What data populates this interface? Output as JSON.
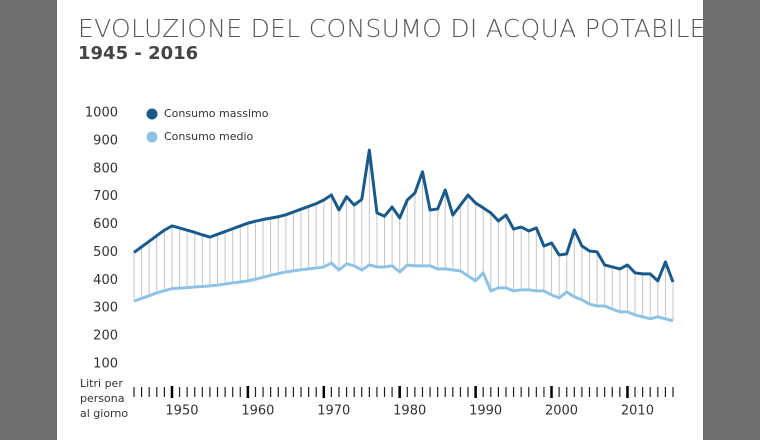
{
  "chart_data": {
    "type": "line",
    "title": "EVOLUZIONE DEL CONSUMO DI ACQUA POTABILE",
    "subtitle": "1945 - 2016",
    "y_label": "Litri per persona al giorno",
    "x": [
      1945,
      1946,
      1947,
      1948,
      1949,
      1950,
      1951,
      1952,
      1953,
      1954,
      1955,
      1956,
      1957,
      1958,
      1959,
      1960,
      1961,
      1962,
      1963,
      1964,
      1965,
      1966,
      1967,
      1968,
      1969,
      1970,
      1971,
      1972,
      1973,
      1974,
      1975,
      1976,
      1977,
      1978,
      1979,
      1980,
      1981,
      1982,
      1983,
      1984,
      1985,
      1986,
      1987,
      1988,
      1989,
      1990,
      1991,
      1992,
      1993,
      1994,
      1995,
      1996,
      1997,
      1998,
      1999,
      2000,
      2001,
      2002,
      2003,
      2004,
      2005,
      2006,
      2007,
      2008,
      2009,
      2010,
      2011,
      2012,
      2013,
      2014,
      2015,
      2016
    ],
    "series": [
      {
        "name": "Consumo massimo",
        "color": "#1a5a8a",
        "values": [
          500,
          520,
          540,
          560,
          580,
          595,
          588,
          580,
          572,
          563,
          555,
          565,
          575,
          585,
          595,
          605,
          612,
          618,
          623,
          628,
          635,
          645,
          655,
          665,
          675,
          688,
          706,
          652,
          700,
          670,
          690,
          867,
          642,
          630,
          663,
          624,
          688,
          713,
          789,
          652,
          656,
          724,
          634,
          670,
          706,
          677,
          660,
          642,
          613,
          634,
          584,
          591,
          577,
          588,
          523,
          534,
          491,
          495,
          581,
          523,
          505,
          502,
          455,
          448,
          441,
          455,
          427,
          423,
          423,
          398,
          466,
          394
        ]
      },
      {
        "name": "Consumo medio",
        "color": "#8ec3e6",
        "values": [
          325,
          335,
          345,
          355,
          363,
          370,
          372,
          374,
          376,
          378,
          380,
          383,
          387,
          391,
          394,
          398,
          404,
          411,
          418,
          424,
          430,
          434,
          438,
          441,
          444,
          448,
          462,
          437,
          459,
          452,
          437,
          455,
          448,
          448,
          452,
          430,
          455,
          452,
          452,
          452,
          441,
          441,
          437,
          434,
          416,
          398,
          427,
          362,
          373,
          373,
          362,
          366,
          366,
          362,
          362,
          348,
          337,
          358,
          341,
          330,
          315,
          308,
          308,
          297,
          287,
          287,
          276,
          269,
          262,
          269,
          262,
          255
        ]
      }
    ],
    "xlim": [
      1945,
      2016
    ],
    "xticks": [
      1950,
      1960,
      1970,
      1980,
      1990,
      2000,
      2010
    ],
    "ylim": [
      100,
      1000
    ],
    "yticks": [
      100,
      200,
      300,
      400,
      500,
      600,
      700,
      800,
      900,
      1000
    ],
    "grid": false,
    "legend": "top-left"
  }
}
